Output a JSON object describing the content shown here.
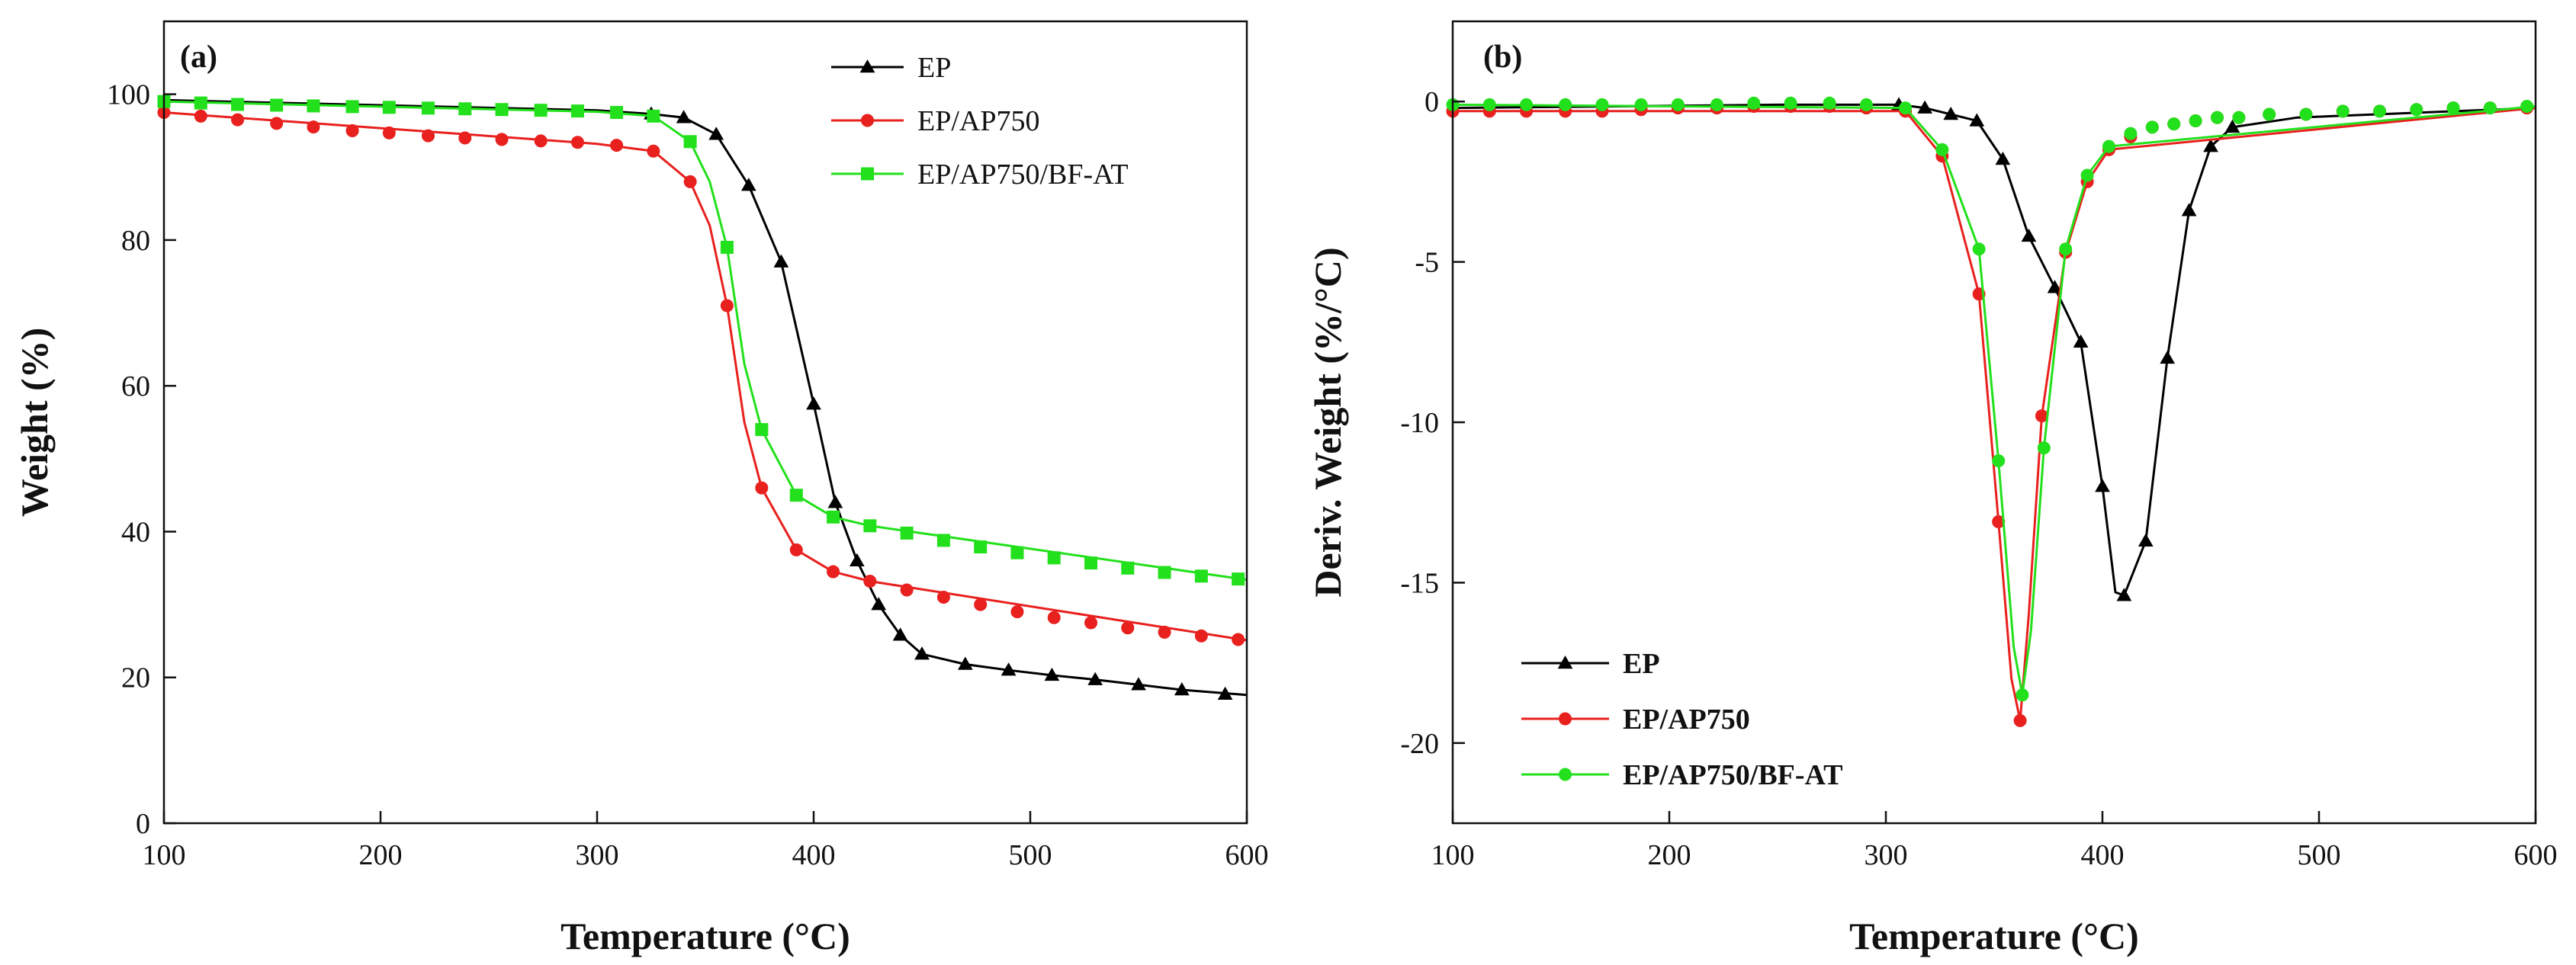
{
  "figure_title": "",
  "colors": {
    "EP": "#000000",
    "EP/AP750": "#e8201e",
    "EP/AP750/BF-AT": "#22e01c"
  },
  "chart_data": [
    {
      "type": "line",
      "panel_label": "(a)",
      "title": "",
      "xlabel": "Temperature (°C)",
      "ylabel": "Weight (%)",
      "xlim": [
        100,
        600
      ],
      "ylim": [
        0,
        110
      ],
      "xticks": [
        100,
        200,
        300,
        400,
        500,
        600
      ],
      "yticks": [
        0,
        20,
        40,
        60,
        80,
        100
      ],
      "legend_position": "top-right",
      "grid": false,
      "series": [
        {
          "name": "EP",
          "color": "#000000",
          "marker": "triangle",
          "x": [
            325,
            340,
            355,
            370,
            385,
            400,
            410,
            420,
            430,
            440,
            450,
            470,
            490,
            510,
            530,
            550,
            570,
            590
          ],
          "y": [
            97.3,
            96.8,
            94.5,
            87.5,
            77.0,
            57.5,
            44.0,
            36.0,
            30.0,
            25.8,
            23.2,
            21.8,
            21.0,
            20.3,
            19.7,
            19.0,
            18.3,
            17.7
          ],
          "line_x": [
            100,
            200,
            300,
            325,
            340,
            355,
            370,
            385,
            400,
            410,
            420,
            430,
            440,
            450,
            470,
            490,
            510,
            530,
            550,
            570,
            600
          ],
          "line_y": [
            99.2,
            98.5,
            97.8,
            97.3,
            96.8,
            94.5,
            87.5,
            77.0,
            57.5,
            44.0,
            36.0,
            30.0,
            25.8,
            23.2,
            21.8,
            21.0,
            20.3,
            19.7,
            19.0,
            18.3,
            17.6
          ]
        },
        {
          "name": "EP/AP750",
          "color": "#e8201e",
          "marker": "circle",
          "x": [
            100,
            117,
            134,
            152,
            169,
            187,
            204,
            222,
            239,
            256,
            274,
            291,
            309,
            326,
            343,
            360,
            376,
            392,
            409,
            426,
            443,
            460,
            477,
            494,
            511,
            528,
            545,
            562,
            579,
            596
          ],
          "y": [
            97.5,
            97.0,
            96.5,
            96.0,
            95.5,
            95.0,
            94.7,
            94.3,
            94.0,
            93.8,
            93.6,
            93.4,
            93.0,
            92.2,
            88.0,
            71.0,
            46.0,
            37.5,
            34.5,
            33.2,
            32.0,
            31.0,
            30.0,
            29.0,
            28.2,
            27.5,
            26.8,
            26.2,
            25.7,
            25.2
          ],
          "line_x": [
            100,
            300,
            326,
            343,
            352,
            360,
            368,
            376,
            392,
            409,
            426,
            600
          ],
          "line_y": [
            97.5,
            93.2,
            92.2,
            88.0,
            82.0,
            71.0,
            55.0,
            46.0,
            37.5,
            34.5,
            33.2,
            25.1
          ]
        },
        {
          "name": "EP/AP750/BF-AT",
          "color": "#22e01c",
          "marker": "square",
          "x": [
            100,
            117,
            134,
            152,
            169,
            187,
            204,
            222,
            239,
            256,
            274,
            291,
            309,
            326,
            343,
            360,
            376,
            392,
            409,
            426,
            443,
            460,
            477,
            494,
            511,
            528,
            545,
            562,
            579,
            596
          ],
          "y": [
            99.0,
            98.8,
            98.6,
            98.5,
            98.4,
            98.3,
            98.2,
            98.1,
            98.0,
            97.9,
            97.8,
            97.7,
            97.5,
            97.0,
            93.5,
            79.0,
            54.0,
            45.0,
            42.0,
            40.8,
            39.8,
            38.8,
            37.9,
            37.1,
            36.4,
            35.7,
            35.0,
            34.4,
            33.9,
            33.5
          ],
          "line_x": [
            100,
            300,
            326,
            343,
            352,
            360,
            368,
            376,
            392,
            409,
            426,
            600
          ],
          "line_y": [
            99.0,
            97.6,
            97.0,
            93.5,
            88.0,
            79.0,
            63.0,
            54.0,
            45.0,
            42.0,
            40.8,
            33.4
          ]
        }
      ]
    },
    {
      "type": "line",
      "panel_label": "(b)",
      "title": "",
      "xlabel": "Temperature (°C)",
      "ylabel": "Deriv. Weight (%/°C)",
      "xlim": [
        100,
        600
      ],
      "ylim": [
        -22.5,
        2.5
      ],
      "xticks": [
        100,
        200,
        300,
        400,
        500,
        600
      ],
      "yticks": [
        0,
        -5,
        -10,
        -15,
        -20
      ],
      "legend_position": "bottom-left",
      "grid": false,
      "series": [
        {
          "name": "EP",
          "color": "#000000",
          "marker": "triangle",
          "x": [
            306,
            318,
            330,
            342,
            354,
            366,
            378,
            390,
            400,
            410,
            420,
            430,
            440,
            450,
            460
          ],
          "y": [
            -0.1,
            -0.2,
            -0.4,
            -0.6,
            -1.8,
            -4.2,
            -5.8,
            -7.5,
            -12.0,
            -15.4,
            -13.7,
            -8.0,
            -3.4,
            -1.4,
            -0.8
          ],
          "line_x": [
            100,
            250,
            306,
            318,
            330,
            342,
            354,
            366,
            378,
            390,
            400,
            406,
            410,
            420,
            430,
            440,
            450,
            460,
            490,
            600
          ],
          "line_y": [
            -0.2,
            -0.1,
            -0.1,
            -0.2,
            -0.4,
            -0.6,
            -1.8,
            -4.2,
            -5.8,
            -7.5,
            -12.0,
            -15.3,
            -15.4,
            -13.7,
            -8.0,
            -3.4,
            -1.4,
            -0.8,
            -0.5,
            -0.2
          ]
        },
        {
          "name": "EP/AP750",
          "color": "#e8201e",
          "marker": "circle",
          "x": [
            100,
            117,
            134,
            152,
            169,
            187,
            204,
            222,
            239,
            256,
            274,
            291,
            309,
            326,
            343,
            352,
            362,
            372,
            383,
            393,
            403,
            413,
            423,
            433,
            443,
            453,
            463,
            477,
            494,
            511,
            528,
            545,
            562,
            579,
            596
          ],
          "y": [
            -0.3,
            -0.3,
            -0.3,
            -0.3,
            -0.3,
            -0.25,
            -0.2,
            -0.2,
            -0.15,
            -0.15,
            -0.15,
            -0.2,
            -0.3,
            -1.7,
            -6.0,
            -13.1,
            -19.3,
            -9.8,
            -4.7,
            -2.5,
            -1.5,
            -1.1,
            -0.8,
            -0.7,
            -0.6,
            -0.5,
            -0.5,
            -0.4,
            -0.4,
            -0.3,
            -0.3,
            -0.25,
            -0.2,
            -0.2,
            -0.2
          ],
          "line_x": [
            100,
            309,
            326,
            343,
            352,
            358,
            362,
            366,
            372,
            383,
            393,
            403,
            600
          ],
          "line_y": [
            -0.3,
            -0.3,
            -1.7,
            -6.0,
            -13.1,
            -18.0,
            -19.3,
            -16.0,
            -9.8,
            -4.7,
            -2.5,
            -1.5,
            -0.2
          ]
        },
        {
          "name": "EP/AP750/BF-AT",
          "color": "#22e01c",
          "marker": "circle",
          "x": [
            100,
            117,
            134,
            152,
            169,
            187,
            204,
            222,
            239,
            256,
            274,
            291,
            309,
            326,
            343,
            352,
            363,
            373,
            383,
            393,
            403,
            413,
            423,
            433,
            443,
            453,
            463,
            477,
            494,
            511,
            528,
            545,
            562,
            579,
            596
          ],
          "y": [
            -0.1,
            -0.1,
            -0.1,
            -0.1,
            -0.1,
            -0.1,
            -0.1,
            -0.1,
            -0.05,
            -0.05,
            -0.05,
            -0.1,
            -0.2,
            -1.5,
            -4.6,
            -11.2,
            -18.5,
            -10.8,
            -4.6,
            -2.3,
            -1.4,
            -1.0,
            -0.8,
            -0.7,
            -0.6,
            -0.5,
            -0.5,
            -0.4,
            -0.4,
            -0.3,
            -0.3,
            -0.25,
            -0.2,
            -0.2,
            -0.15
          ],
          "line_x": [
            100,
            309,
            326,
            343,
            352,
            359,
            363,
            367,
            373,
            383,
            393,
            403,
            600
          ],
          "line_y": [
            -0.1,
            -0.2,
            -1.5,
            -4.6,
            -11.2,
            -17.0,
            -18.5,
            -16.5,
            -10.8,
            -4.6,
            -2.3,
            -1.4,
            -0.15
          ]
        }
      ]
    }
  ]
}
